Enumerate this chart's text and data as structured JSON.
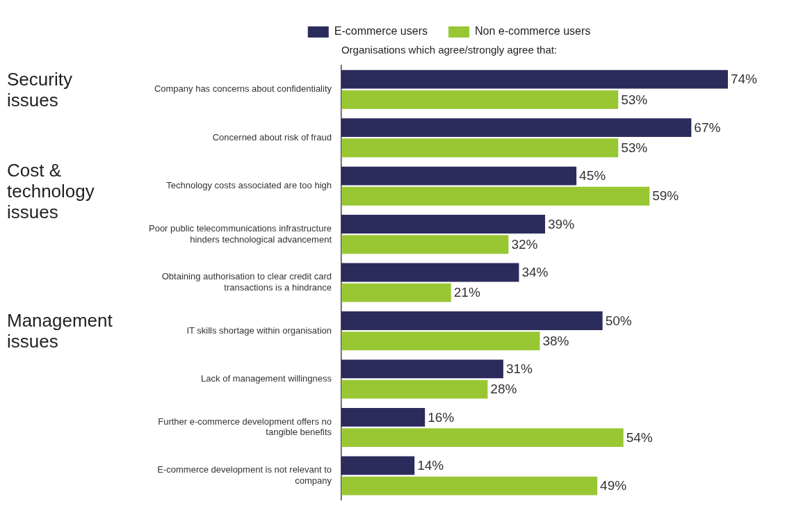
{
  "chart_data": {
    "type": "bar",
    "orientation": "horizontal",
    "title": "Organisations which agree/strongly agree that:",
    "categories": [
      "Company has concerns about confidentiality",
      "Concerned about risk of fraud",
      "Technology costs associated are too high",
      "Poor public telecommunications infrastructure hinders technological advancement",
      "Obtaining authorisation to clear credit card transactions is a hindrance",
      "IT skills shortage within organisation",
      "Lack of management willingness",
      "Further e-commerce development offers no tangible benefits",
      "E-commerce development is not relevant to company"
    ],
    "series": [
      {
        "name": "E-commerce users",
        "color": "#2b2c5c",
        "values": [
          74,
          67,
          45,
          39,
          34,
          50,
          31,
          16,
          14
        ],
        "value_labels": [
          "74%",
          "67%",
          "45%",
          "39%",
          "34%",
          "50%",
          "31%",
          "16%",
          "14%"
        ]
      },
      {
        "name": "Non e-commerce users",
        "color": "#99c733",
        "values": [
          53,
          53,
          59,
          32,
          21,
          38,
          28,
          54,
          49
        ],
        "value_labels": [
          "53%",
          "53%",
          "59%",
          "32%",
          "21%",
          "38%",
          "28%",
          "54%",
          "49%"
        ]
      }
    ],
    "tick_labels": "y",
    "grid": false,
    "legend": "top",
    "annotations": [
      "Security issues",
      "Cost & technology issues",
      "Management issues"
    ]
  }
}
